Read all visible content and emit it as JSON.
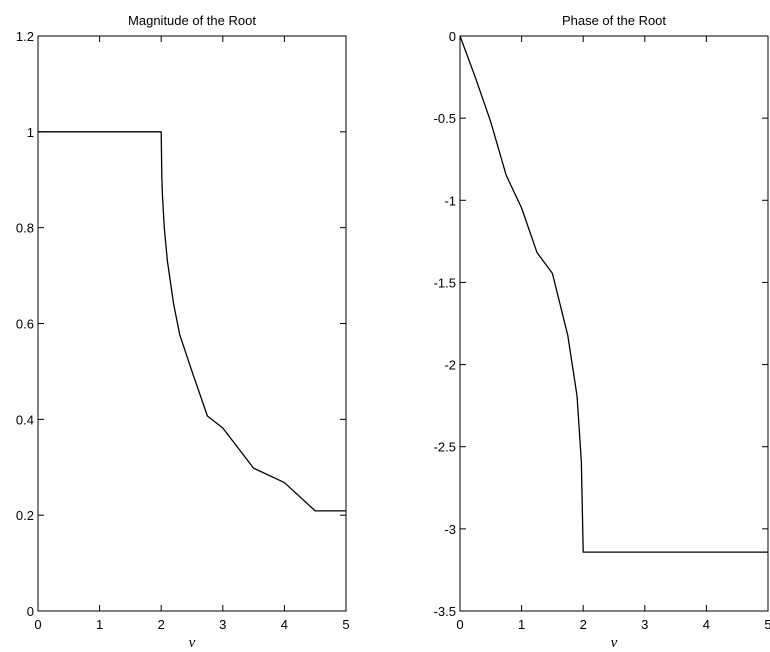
{
  "chart_data": [
    {
      "type": "line",
      "title": "Magnitude of the Root",
      "xlabel": "ν",
      "ylabel": "",
      "xlim": [
        0,
        5
      ],
      "ylim": [
        0,
        1.2
      ],
      "xticks": [
        "0",
        "1",
        "2",
        "3",
        "4",
        "5"
      ],
      "yticks": [
        "0",
        "0.2",
        "0.4",
        "0.6",
        "0.8",
        "1",
        "1.2"
      ],
      "grid": false,
      "series": [
        {
          "x": [
            0,
            0.5,
            1.0,
            1.5,
            1.995,
            2.0,
            2.01,
            2.02,
            2.05,
            2.1,
            2.2,
            2.3,
            2.5,
            2.75,
            3.0,
            3.5,
            4.0,
            4.5,
            5.0
          ],
          "y": [
            1.0,
            1.0,
            1.0,
            1.0,
            1.0,
            1.0,
            0.905,
            0.868,
            0.8,
            0.731,
            0.642,
            0.577,
            0.5,
            0.407,
            0.382,
            0.298,
            0.268,
            0.209,
            0.209
          ]
        }
      ]
    },
    {
      "type": "line",
      "title": "Phase of the Root",
      "xlabel": "ν",
      "ylabel": "",
      "xlim": [
        0,
        5
      ],
      "ylim": [
        -3.5,
        0
      ],
      "xticks": [
        "0",
        "1",
        "2",
        "3",
        "4",
        "5"
      ],
      "yticks": [
        "0",
        "-0.5",
        "-1",
        "-1.5",
        "-2",
        "-2.5",
        "-3",
        "-3.5"
      ],
      "grid": false,
      "series": [
        {
          "x": [
            0,
            0.25,
            0.5,
            0.75,
            1.0,
            1.25,
            1.5,
            1.75,
            1.9,
            1.97,
            2.0,
            2.5,
            3.0,
            3.5,
            4.0,
            4.5,
            5.0
          ],
          "y": [
            0,
            -0.253,
            -0.524,
            -0.848,
            -1.047,
            -1.318,
            -1.445,
            -1.823,
            -2.191,
            -2.591,
            -3.1416,
            -3.1416,
            -3.1416,
            -3.1416,
            -3.1416,
            -3.1416,
            -3.1416
          ]
        }
      ]
    }
  ]
}
